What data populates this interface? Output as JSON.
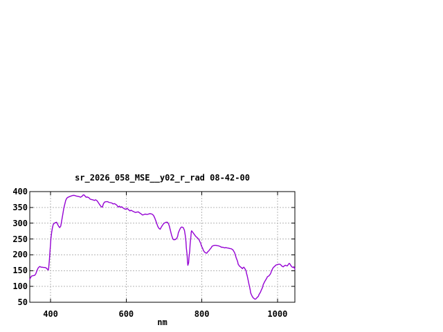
{
  "page": {
    "background": "#ffffff"
  },
  "chart": {
    "title": "sr_2026_058_MSE__y02_r_rad 08-42-00",
    "xlabel": "nm",
    "line_color": "#9400d3",
    "grid_color": "#b5b5b5",
    "axis_color": "#000000",
    "text_color": "#000000"
  },
  "chart_data": {
    "type": "line",
    "title": "sr_2026_058_MSE__y02_r_rad 08-42-00",
    "xlabel": "nm",
    "ylabel": "",
    "xlim": [
      345,
      1046
    ],
    "ylim": [
      50,
      400
    ],
    "x_ticks": [
      400,
      600,
      800,
      1000
    ],
    "y_ticks": [
      50,
      100,
      150,
      200,
      250,
      300,
      350,
      400
    ],
    "grid": true,
    "legend_position": "none",
    "series": [
      {
        "name": "sr_2026_058_MSE__y02_r_rad",
        "color": "#9400d3",
        "points": [
          [
            345,
            122
          ],
          [
            347,
            128
          ],
          [
            350,
            133
          ],
          [
            354,
            134
          ],
          [
            358,
            135
          ],
          [
            361,
            140
          ],
          [
            364,
            150
          ],
          [
            367,
            158
          ],
          [
            371,
            163
          ],
          [
            375,
            161
          ],
          [
            378,
            161
          ],
          [
            382,
            160
          ],
          [
            385,
            160
          ],
          [
            389,
            158
          ],
          [
            392,
            154
          ],
          [
            394,
            152
          ],
          [
            395,
            158
          ],
          [
            397,
            185
          ],
          [
            399,
            220
          ],
          [
            401,
            252
          ],
          [
            403,
            272
          ],
          [
            405,
            286
          ],
          [
            407,
            296
          ],
          [
            410,
            300
          ],
          [
            413,
            302
          ],
          [
            416,
            303
          ],
          [
            418,
            298
          ],
          [
            421,
            291
          ],
          [
            424,
            286
          ],
          [
            427,
            291
          ],
          [
            429,
            305
          ],
          [
            432,
            325
          ],
          [
            435,
            348
          ],
          [
            438,
            362
          ],
          [
            440,
            372
          ],
          [
            443,
            379
          ],
          [
            446,
            382
          ],
          [
            450,
            384
          ],
          [
            454,
            386
          ],
          [
            459,
            388
          ],
          [
            463,
            388
          ],
          [
            468,
            386
          ],
          [
            473,
            385
          ],
          [
            476,
            384
          ],
          [
            479,
            382
          ],
          [
            483,
            385
          ],
          [
            486,
            389
          ],
          [
            488,
            390
          ],
          [
            491,
            386
          ],
          [
            494,
            382
          ],
          [
            497,
            383
          ],
          [
            501,
            381
          ],
          [
            505,
            376
          ],
          [
            508,
            375
          ],
          [
            512,
            374
          ],
          [
            516,
            372
          ],
          [
            519,
            374
          ],
          [
            523,
            371
          ],
          [
            527,
            364
          ],
          [
            531,
            357
          ],
          [
            534,
            352
          ],
          [
            537,
            351
          ],
          [
            540,
            362
          ],
          [
            543,
            367
          ],
          [
            547,
            368
          ],
          [
            551,
            368
          ],
          [
            554,
            366
          ],
          [
            558,
            365
          ],
          [
            562,
            364
          ],
          [
            565,
            361
          ],
          [
            569,
            362
          ],
          [
            573,
            359
          ],
          [
            576,
            356
          ],
          [
            579,
            351
          ],
          [
            582,
            354
          ],
          [
            586,
            350
          ],
          [
            588,
            352
          ],
          [
            592,
            348
          ],
          [
            596,
            345
          ],
          [
            599,
            344
          ],
          [
            602,
            347
          ],
          [
            606,
            343
          ],
          [
            610,
            339
          ],
          [
            613,
            341
          ],
          [
            617,
            338
          ],
          [
            621,
            336
          ],
          [
            624,
            334
          ],
          [
            628,
            335
          ],
          [
            632,
            336
          ],
          [
            635,
            333
          ],
          [
            639,
            330
          ],
          [
            643,
            326
          ],
          [
            646,
            327
          ],
          [
            650,
            329
          ],
          [
            654,
            328
          ],
          [
            657,
            328
          ],
          [
            661,
            330
          ],
          [
            665,
            330
          ],
          [
            668,
            329
          ],
          [
            672,
            325
          ],
          [
            675,
            318
          ],
          [
            678,
            309
          ],
          [
            681,
            298
          ],
          [
            684,
            289
          ],
          [
            687,
            283
          ],
          [
            690,
            281
          ],
          [
            692,
            286
          ],
          [
            696,
            294
          ],
          [
            700,
            300
          ],
          [
            702,
            301
          ],
          [
            705,
            303
          ],
          [
            709,
            303
          ],
          [
            712,
            298
          ],
          [
            714,
            291
          ],
          [
            717,
            277
          ],
          [
            720,
            262
          ],
          [
            723,
            252
          ],
          [
            725,
            248
          ],
          [
            729,
            248
          ],
          [
            733,
            251
          ],
          [
            736,
            258
          ],
          [
            738,
            270
          ],
          [
            742,
            281
          ],
          [
            745,
            287
          ],
          [
            747,
            288
          ],
          [
            751,
            286
          ],
          [
            754,
            277
          ],
          [
            756,
            262
          ],
          [
            758,
            243
          ],
          [
            759,
            222
          ],
          [
            761,
            200
          ],
          [
            762,
            180
          ],
          [
            763,
            167
          ],
          [
            765,
            175
          ],
          [
            766,
            192
          ],
          [
            768,
            212
          ],
          [
            769,
            235
          ],
          [
            771,
            258
          ],
          [
            772,
            272
          ],
          [
            773,
            276
          ],
          [
            775,
            273
          ],
          [
            778,
            268
          ],
          [
            781,
            263
          ],
          [
            784,
            258
          ],
          [
            788,
            254
          ],
          [
            792,
            249
          ],
          [
            794,
            244
          ],
          [
            797,
            236
          ],
          [
            799,
            228
          ],
          [
            802,
            221
          ],
          [
            804,
            214
          ],
          [
            807,
            209
          ],
          [
            810,
            206
          ],
          [
            813,
            205
          ],
          [
            815,
            209
          ],
          [
            818,
            212
          ],
          [
            821,
            217
          ],
          [
            825,
            223
          ],
          [
            827,
            227
          ],
          [
            830,
            229
          ],
          [
            834,
            230
          ],
          [
            837,
            230
          ],
          [
            841,
            229
          ],
          [
            845,
            228
          ],
          [
            849,
            226
          ],
          [
            852,
            224
          ],
          [
            856,
            224
          ],
          [
            860,
            222
          ],
          [
            863,
            223
          ],
          [
            867,
            222
          ],
          [
            871,
            221
          ],
          [
            874,
            220
          ],
          [
            878,
            219
          ],
          [
            882,
            216
          ],
          [
            884,
            212
          ],
          [
            887,
            206
          ],
          [
            889,
            198
          ],
          [
            891,
            190
          ],
          [
            893,
            184
          ],
          [
            895,
            177
          ],
          [
            896,
            171
          ],
          [
            898,
            167
          ],
          [
            900,
            164
          ],
          [
            902,
            162
          ],
          [
            904,
            160
          ],
          [
            906,
            158
          ],
          [
            907,
            156
          ],
          [
            909,
            159
          ],
          [
            911,
            161
          ],
          [
            913,
            158
          ],
          [
            915,
            154
          ],
          [
            917,
            149
          ],
          [
            918,
            142
          ],
          [
            920,
            133
          ],
          [
            922,
            122
          ],
          [
            924,
            111
          ],
          [
            926,
            100
          ],
          [
            928,
            89
          ],
          [
            929,
            80
          ],
          [
            931,
            74
          ],
          [
            933,
            69
          ],
          [
            935,
            65
          ],
          [
            937,
            63
          ],
          [
            939,
            61
          ],
          [
            940,
            60
          ],
          [
            942,
            60
          ],
          [
            944,
            62
          ],
          [
            946,
            65
          ],
          [
            948,
            67
          ],
          [
            950,
            70
          ],
          [
            951,
            74
          ],
          [
            953,
            78
          ],
          [
            955,
            82
          ],
          [
            957,
            88
          ],
          [
            959,
            93
          ],
          [
            961,
            99
          ],
          [
            962,
            105
          ],
          [
            964,
            110
          ],
          [
            966,
            115
          ],
          [
            968,
            119
          ],
          [
            970,
            123
          ],
          [
            972,
            127
          ],
          [
            973,
            130
          ],
          [
            975,
            132
          ],
          [
            977,
            133
          ],
          [
            979,
            136
          ],
          [
            981,
            139
          ],
          [
            983,
            144
          ],
          [
            984,
            149
          ],
          [
            986,
            153
          ],
          [
            988,
            158
          ],
          [
            990,
            161
          ],
          [
            992,
            163
          ],
          [
            994,
            165
          ],
          [
            995,
            167
          ],
          [
            999,
            169
          ],
          [
            1003,
            170
          ],
          [
            1007,
            170
          ],
          [
            1009,
            168
          ],
          [
            1012,
            164
          ],
          [
            1015,
            162
          ],
          [
            1018,
            165
          ],
          [
            1021,
            167
          ],
          [
            1023,
            166
          ],
          [
            1026,
            165
          ],
          [
            1029,
            170
          ],
          [
            1031,
            173
          ],
          [
            1033,
            171
          ],
          [
            1036,
            165
          ],
          [
            1039,
            161
          ],
          [
            1042,
            160
          ],
          [
            1043,
            162
          ],
          [
            1045,
            158
          ],
          [
            1046,
            154
          ]
        ]
      }
    ]
  }
}
